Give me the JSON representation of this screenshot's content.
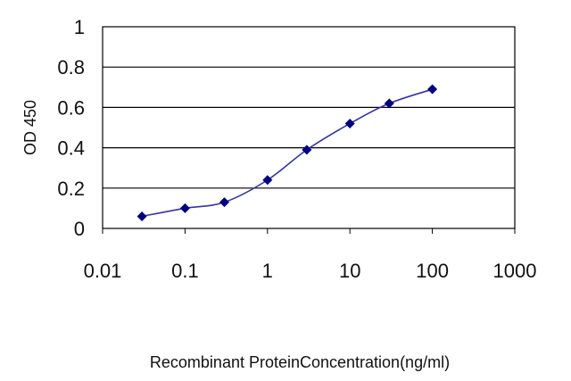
{
  "chart_data": {
    "type": "line",
    "title": "",
    "xlabel": "Recombinant ProteinConcentration(ng/ml)",
    "ylabel": "OD 450",
    "xscale": "log",
    "xlim": [
      0.01,
      1000
    ],
    "ylim": [
      0,
      1
    ],
    "x_ticks": [
      "0.01",
      "0.1",
      "1",
      "10",
      "100",
      "1000"
    ],
    "y_ticks": [
      "0",
      "0.2",
      "0.4",
      "0.6",
      "0.8",
      "1"
    ],
    "grid": "horizontal",
    "legend": "none",
    "series": [
      {
        "color": "#000080",
        "marker": "diamond",
        "x": [
          0.03,
          0.1,
          0.3,
          1,
          3,
          10,
          30,
          100
        ],
        "y": [
          0.06,
          0.1,
          0.13,
          0.24,
          0.39,
          0.52,
          0.62,
          0.69
        ]
      }
    ]
  }
}
